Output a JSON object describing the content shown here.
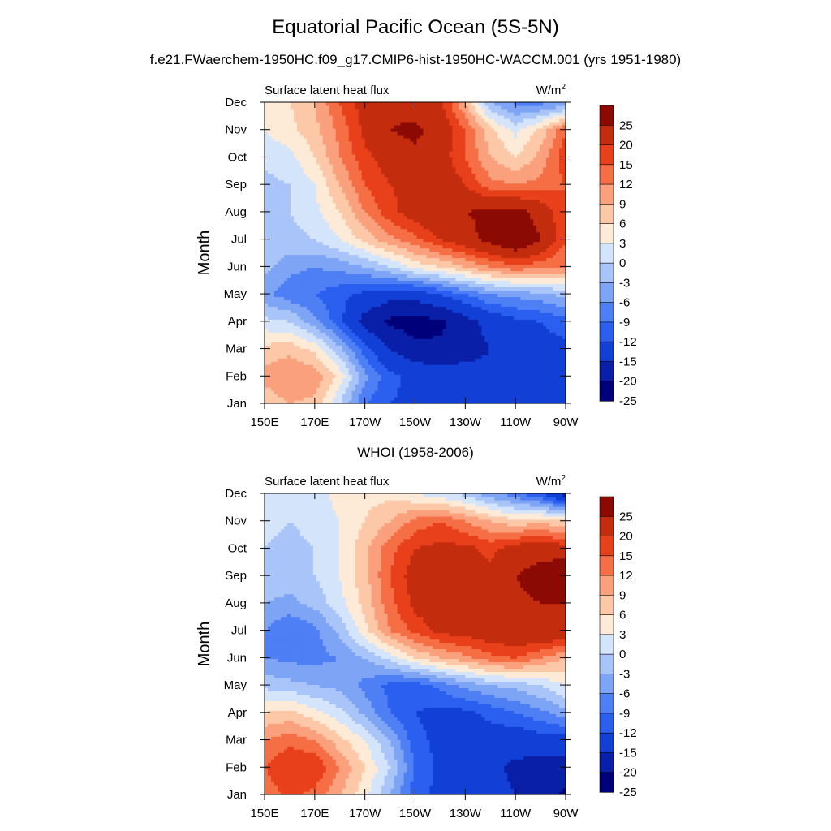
{
  "title": "Equatorial Pacific Ocean (5S-5N)",
  "subtitle": "f.e21.FWaerchem-1950HC.f09_g17.CMIP6-hist-1950HC-WACCM.001 (yrs 1951-1980)",
  "second_title": "WHOI (1958-2006)",
  "colors": {
    "levels": [
      "#00007a",
      "#0a1fa8",
      "#1240d6",
      "#2a5ff0",
      "#4f7ff5",
      "#7ea4f6",
      "#a9c4f8",
      "#d4e4fb",
      "#fdebd8",
      "#fcc8a8",
      "#fba07c",
      "#f56e45",
      "#e8401a",
      "#c42c0e",
      "#8c0a04"
    ],
    "bounds": [
      -25,
      -20,
      -15,
      -12,
      -9,
      -6,
      -3,
      0,
      3,
      6,
      9,
      12,
      15,
      20,
      25
    ]
  },
  "chart_data": [
    {
      "type": "heatmap",
      "panel": "model",
      "left_label": "Surface latent heat flux",
      "unit": "W/m",
      "unit_sup": "2",
      "ylabel": "Month",
      "xticks": [
        "150E",
        "170E",
        "170W",
        "150W",
        "130W",
        "110W",
        "90W"
      ],
      "yticks": [
        "Jan",
        "Feb",
        "Mar",
        "Apr",
        "May",
        "Jun",
        "Jul",
        "Aug",
        "Sep",
        "Oct",
        "Nov",
        "Dec"
      ],
      "colorbar_labels": [
        "25",
        "20",
        "15",
        "12",
        "9",
        "6",
        "3",
        "0",
        "-3",
        "-6",
        "-9",
        "-12",
        "-15",
        "-20",
        "-25"
      ],
      "x_lon": [
        150,
        160,
        170,
        180,
        190,
        200,
        210,
        220,
        230,
        240,
        250,
        260,
        270
      ],
      "z": [
        [
          4,
          6,
          5,
          -3,
          -12,
          -15,
          -16,
          -17,
          -17,
          -18,
          -20,
          -19,
          -18
        ],
        [
          7,
          9,
          8,
          2,
          -8,
          -14,
          -16,
          -17,
          -17,
          -18,
          -18,
          -19,
          -20
        ],
        [
          4,
          5,
          2,
          -5,
          -14,
          -20,
          -24,
          -24,
          -23,
          -20,
          -18,
          -17,
          -16
        ],
        [
          -2,
          -3,
          -8,
          -14,
          -22,
          -26,
          -27,
          -26,
          -22,
          -18,
          -16,
          -15,
          -13
        ],
        [
          -8,
          -11,
          -12,
          -14,
          -16,
          -18,
          -18,
          -15,
          -12,
          -9,
          -8,
          -7,
          -5
        ],
        [
          -5,
          -8,
          -9,
          -8,
          -6,
          -3,
          1,
          3,
          6,
          9,
          11,
          10,
          9
        ],
        [
          -3,
          -4,
          -3,
          0,
          4,
          8,
          11,
          15,
          18,
          22,
          26,
          20,
          12
        ],
        [
          -5,
          -3,
          -1,
          3,
          9,
          14,
          17,
          20,
          20,
          21,
          22,
          18,
          12
        ],
        [
          -4,
          -3,
          0,
          6,
          12,
          15,
          16,
          18,
          15,
          10,
          9,
          10,
          12
        ],
        [
          -2,
          -1,
          3,
          9,
          14,
          17,
          19,
          17,
          12,
          6,
          3,
          7,
          14
        ],
        [
          0,
          2,
          5,
          10,
          16,
          20,
          21,
          18,
          12,
          4,
          -1,
          4,
          12
        ],
        [
          2,
          3,
          6,
          12,
          17,
          19,
          18,
          16,
          6,
          -6,
          -10,
          -10,
          -9
        ]
      ]
    },
    {
      "type": "heatmap",
      "panel": "whoi",
      "left_label": "Surface latent heat flux",
      "unit": "W/m",
      "unit_sup": "2",
      "ylabel": "Month",
      "xticks": [
        "150E",
        "170E",
        "170W",
        "150W",
        "130W",
        "110W",
        "90W"
      ],
      "yticks": [
        "Jan",
        "Feb",
        "Mar",
        "Apr",
        "May",
        "Jun",
        "Jul",
        "Aug",
        "Sep",
        "Oct",
        "Nov",
        "Dec"
      ],
      "colorbar_labels": [
        "25",
        "20",
        "15",
        "12",
        "9",
        "6",
        "3",
        "0",
        "-3",
        "-6",
        "-9",
        "-12",
        "-15",
        "-20",
        "-25"
      ],
      "x_lon": [
        150,
        160,
        170,
        180,
        190,
        200,
        210,
        220,
        230,
        240,
        250,
        260,
        270
      ],
      "z": [
        [
          10,
          13,
          11,
          6,
          1,
          -6,
          -14,
          -16,
          -16,
          -18,
          -20,
          -22,
          -26
        ],
        [
          12,
          15,
          15,
          9,
          3,
          -3,
          -12,
          -16,
          -17,
          -19,
          -21,
          -22,
          -22
        ],
        [
          9,
          11,
          9,
          4,
          0,
          -6,
          -14,
          -16,
          -16,
          -17,
          -18,
          -17,
          -17
        ],
        [
          3,
          4,
          1,
          -2,
          -7,
          -12,
          -15,
          -16,
          -16,
          -14,
          -12,
          -10,
          -7
        ],
        [
          -4,
          -5,
          -6,
          -7,
          -10,
          -13,
          -14,
          -11,
          -8,
          -6,
          -5,
          -3,
          0
        ],
        [
          -9,
          -10,
          -10,
          -9,
          -6,
          -2,
          3,
          6,
          8,
          11,
          12,
          9,
          6
        ],
        [
          -9,
          -12,
          -10,
          -5,
          2,
          9,
          13,
          16,
          17,
          18,
          19,
          20,
          19
        ],
        [
          -6,
          -7,
          -5,
          -1,
          4,
          11,
          16,
          18,
          17,
          17,
          19,
          20,
          20
        ],
        [
          -4,
          -4,
          -3,
          0,
          5,
          12,
          17,
          18,
          17,
          16,
          20,
          22,
          25
        ],
        [
          -3,
          -4,
          -3,
          0,
          5,
          11,
          15,
          16,
          16,
          14,
          17,
          18,
          17
        ],
        [
          -2,
          -3,
          -2,
          0,
          3,
          6,
          10,
          12,
          9,
          6,
          4,
          5,
          3
        ],
        [
          -2,
          -3,
          -1,
          1,
          2,
          2,
          0,
          -2,
          -4,
          -8,
          -11,
          -15,
          -22
        ]
      ]
    }
  ]
}
